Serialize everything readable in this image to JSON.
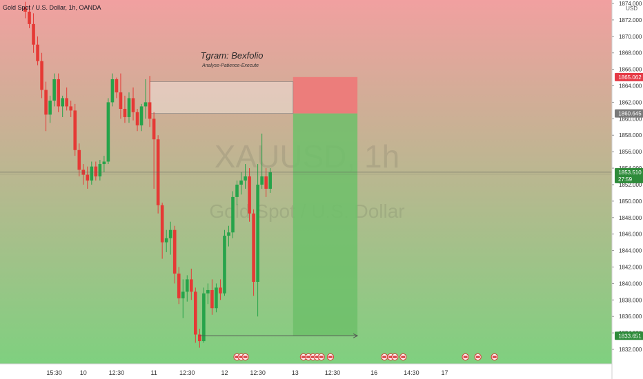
{
  "header": {
    "symbol_line": "Gold Spot / U.S. Dollar, 1h, OANDA"
  },
  "watermark": {
    "line1": "XAUUSD, 1h",
    "line2": "Gold Spot / U.S. Dollar"
  },
  "annotation": {
    "title": "Tgram: Bexfolio",
    "subtitle": "Analyse-Patience-Execute"
  },
  "colors": {
    "up": "#26a34a",
    "down": "#e53935",
    "bg_top": "#f1a0a0",
    "bg_bottom": "#7fd07f",
    "stop_zone": "#ee7878",
    "target_zone": "#6dbf6a",
    "last_price_tag": "#2e8b3a",
    "stop_tag": "#e53945",
    "entry_tag": "#7a7a7a",
    "target_tag": "#2e8b3a"
  },
  "chart_data": {
    "type": "candlestick",
    "currency": "USD",
    "y_ticks": [
      "1874.000",
      "1872.000",
      "1870.000",
      "1868.000",
      "1866.000",
      "1864.000",
      "1862.000",
      "1860.000",
      "1858.000",
      "1856.000",
      "1854.000",
      "1852.000",
      "1850.000",
      "1848.000",
      "1846.000",
      "1844.000",
      "1842.000",
      "1840.000",
      "1838.000",
      "1836.000",
      "1834.000",
      "1832.000"
    ],
    "ylim": [
      1831.2,
      1874.2
    ],
    "x_ticks": [
      {
        "label": "15:30",
        "index": 7
      },
      {
        "label": "10",
        "index": 14
      },
      {
        "label": "12:30",
        "index": 22
      },
      {
        "label": "11",
        "index": 31
      },
      {
        "label": "12:30",
        "index": 39
      },
      {
        "label": "12",
        "index": 48
      },
      {
        "label": "12:30",
        "index": 56
      },
      {
        "label": "13",
        "index": 65
      },
      {
        "label": "12:30",
        "index": 74
      },
      {
        "label": "16",
        "index": 84
      },
      {
        "label": "14:30",
        "index": 93
      },
      {
        "label": "17",
        "index": 101
      }
    ],
    "candles": [
      {
        "o": 1873.5,
        "h": 1874.2,
        "l": 1872.2,
        "c": 1873.0
      },
      {
        "o": 1873.0,
        "h": 1873.8,
        "l": 1871.0,
        "c": 1871.5
      },
      {
        "o": 1871.5,
        "h": 1872.8,
        "l": 1868.0,
        "c": 1869.0
      },
      {
        "o": 1869.0,
        "h": 1870.0,
        "l": 1866.5,
        "c": 1867.0
      },
      {
        "o": 1867.0,
        "h": 1868.0,
        "l": 1862.5,
        "c": 1863.5
      },
      {
        "o": 1863.5,
        "h": 1864.5,
        "l": 1858.5,
        "c": 1860.5
      },
      {
        "o": 1860.5,
        "h": 1862.8,
        "l": 1859.5,
        "c": 1862.2
      },
      {
        "o": 1862.2,
        "h": 1865.5,
        "l": 1861.5,
        "c": 1864.8
      },
      {
        "o": 1864.8,
        "h": 1865.5,
        "l": 1860.8,
        "c": 1861.5
      },
      {
        "o": 1861.5,
        "h": 1862.8,
        "l": 1860.2,
        "c": 1862.5
      },
      {
        "o": 1862.5,
        "h": 1863.8,
        "l": 1861.0,
        "c": 1861.5
      },
      {
        "o": 1861.5,
        "h": 1862.2,
        "l": 1860.2,
        "c": 1861.0
      },
      {
        "o": 1861.0,
        "h": 1861.8,
        "l": 1855.5,
        "c": 1856.2
      },
      {
        "o": 1856.2,
        "h": 1857.0,
        "l": 1853.0,
        "c": 1853.8
      },
      {
        "o": 1853.8,
        "h": 1854.5,
        "l": 1852.0,
        "c": 1853.2
      },
      {
        "o": 1853.2,
        "h": 1854.2,
        "l": 1851.5,
        "c": 1852.5
      },
      {
        "o": 1852.5,
        "h": 1854.8,
        "l": 1852.0,
        "c": 1854.2
      },
      {
        "o": 1854.2,
        "h": 1854.8,
        "l": 1852.5,
        "c": 1853.0
      },
      {
        "o": 1853.0,
        "h": 1855.0,
        "l": 1852.5,
        "c": 1854.5
      },
      {
        "o": 1854.5,
        "h": 1855.5,
        "l": 1853.5,
        "c": 1854.8
      },
      {
        "o": 1854.8,
        "h": 1862.5,
        "l": 1854.5,
        "c": 1862.0
      },
      {
        "o": 1862.0,
        "h": 1865.5,
        "l": 1861.5,
        "c": 1864.8
      },
      {
        "o": 1864.8,
        "h": 1865.0,
        "l": 1862.5,
        "c": 1863.2
      },
      {
        "o": 1863.2,
        "h": 1865.5,
        "l": 1860.0,
        "c": 1861.2
      },
      {
        "o": 1861.2,
        "h": 1862.8,
        "l": 1859.5,
        "c": 1860.2
      },
      {
        "o": 1860.2,
        "h": 1863.2,
        "l": 1859.5,
        "c": 1862.5
      },
      {
        "o": 1862.5,
        "h": 1863.8,
        "l": 1859.8,
        "c": 1860.8
      },
      {
        "o": 1860.8,
        "h": 1861.2,
        "l": 1858.5,
        "c": 1859.2
      },
      {
        "o": 1859.2,
        "h": 1861.8,
        "l": 1858.5,
        "c": 1861.5
      },
      {
        "o": 1861.5,
        "h": 1864.8,
        "l": 1860.0,
        "c": 1862.0
      },
      {
        "o": 1862.0,
        "h": 1865.2,
        "l": 1859.0,
        "c": 1860.0
      },
      {
        "o": 1860.0,
        "h": 1860.8,
        "l": 1851.5,
        "c": 1857.5
      },
      {
        "o": 1857.5,
        "h": 1858.0,
        "l": 1848.5,
        "c": 1849.5
      },
      {
        "o": 1849.5,
        "h": 1849.8,
        "l": 1843.0,
        "c": 1845.0
      },
      {
        "o": 1845.0,
        "h": 1846.5,
        "l": 1843.8,
        "c": 1845.5
      },
      {
        "o": 1845.5,
        "h": 1847.5,
        "l": 1843.5,
        "c": 1846.5
      },
      {
        "o": 1846.5,
        "h": 1847.0,
        "l": 1840.0,
        "c": 1841.2
      },
      {
        "o": 1841.2,
        "h": 1842.0,
        "l": 1837.5,
        "c": 1838.2
      },
      {
        "o": 1838.2,
        "h": 1840.5,
        "l": 1835.8,
        "c": 1839.0
      },
      {
        "o": 1839.0,
        "h": 1841.0,
        "l": 1837.8,
        "c": 1840.5
      },
      {
        "o": 1840.5,
        "h": 1841.8,
        "l": 1838.0,
        "c": 1839.0
      },
      {
        "o": 1839.0,
        "h": 1839.5,
        "l": 1832.8,
        "c": 1833.8
      },
      {
        "o": 1833.8,
        "h": 1834.5,
        "l": 1832.2,
        "c": 1833.0
      },
      {
        "o": 1833.0,
        "h": 1839.5,
        "l": 1832.8,
        "c": 1838.8
      },
      {
        "o": 1838.8,
        "h": 1840.0,
        "l": 1837.5,
        "c": 1839.2
      },
      {
        "o": 1839.2,
        "h": 1840.5,
        "l": 1836.2,
        "c": 1837.0
      },
      {
        "o": 1837.0,
        "h": 1840.0,
        "l": 1836.5,
        "c": 1839.5
      },
      {
        "o": 1839.5,
        "h": 1840.5,
        "l": 1838.0,
        "c": 1838.8
      },
      {
        "o": 1838.8,
        "h": 1846.5,
        "l": 1838.5,
        "c": 1845.8
      },
      {
        "o": 1845.8,
        "h": 1847.0,
        "l": 1844.5,
        "c": 1846.2
      },
      {
        "o": 1846.2,
        "h": 1851.2,
        "l": 1845.5,
        "c": 1850.5
      },
      {
        "o": 1850.5,
        "h": 1852.5,
        "l": 1849.5,
        "c": 1852.0
      },
      {
        "o": 1852.0,
        "h": 1853.5,
        "l": 1850.8,
        "c": 1852.5
      },
      {
        "o": 1852.5,
        "h": 1854.5,
        "l": 1851.5,
        "c": 1853.0
      },
      {
        "o": 1853.0,
        "h": 1854.0,
        "l": 1847.5,
        "c": 1848.5
      },
      {
        "o": 1848.5,
        "h": 1849.0,
        "l": 1838.5,
        "c": 1840.2
      },
      {
        "o": 1840.2,
        "h": 1854.5,
        "l": 1836.0,
        "c": 1852.0
      },
      {
        "o": 1852.0,
        "h": 1858.2,
        "l": 1851.5,
        "c": 1853.0
      },
      {
        "o": 1853.0,
        "h": 1854.0,
        "l": 1850.5,
        "c": 1851.5
      },
      {
        "o": 1851.5,
        "h": 1854.0,
        "l": 1851.0,
        "c": 1853.5
      }
    ],
    "position": {
      "type": "short",
      "stop": 1865.062,
      "entry": 1860.645,
      "target": 1833.651,
      "stop_label": "1865.062",
      "entry_label": "1860.645",
      "target_label": "1833.651",
      "start_index": 64.5,
      "end_index": 80
    },
    "last_price": {
      "value": 1853.51,
      "label": "1853.510",
      "countdown": "27:59"
    },
    "prev_high_box": {
      "top": 1864.5,
      "bottom": 1860.645,
      "start_index": 30,
      "end_index": 64.5
    },
    "arrow": {
      "y": 1833.651,
      "start_index": 42,
      "end_index": 80
    },
    "event_markers": [
      {
        "index": 51
      },
      {
        "index": 52
      },
      {
        "index": 53
      },
      {
        "index": 67
      },
      {
        "index": 68.2
      },
      {
        "index": 69.3
      },
      {
        "index": 70.3
      },
      {
        "index": 71.3
      },
      {
        "index": 73.5
      },
      {
        "index": 86.5
      },
      {
        "index": 88
      },
      {
        "index": 89
      },
      {
        "index": 91
      },
      {
        "index": 106
      },
      {
        "index": 109
      },
      {
        "index": 113
      }
    ]
  }
}
